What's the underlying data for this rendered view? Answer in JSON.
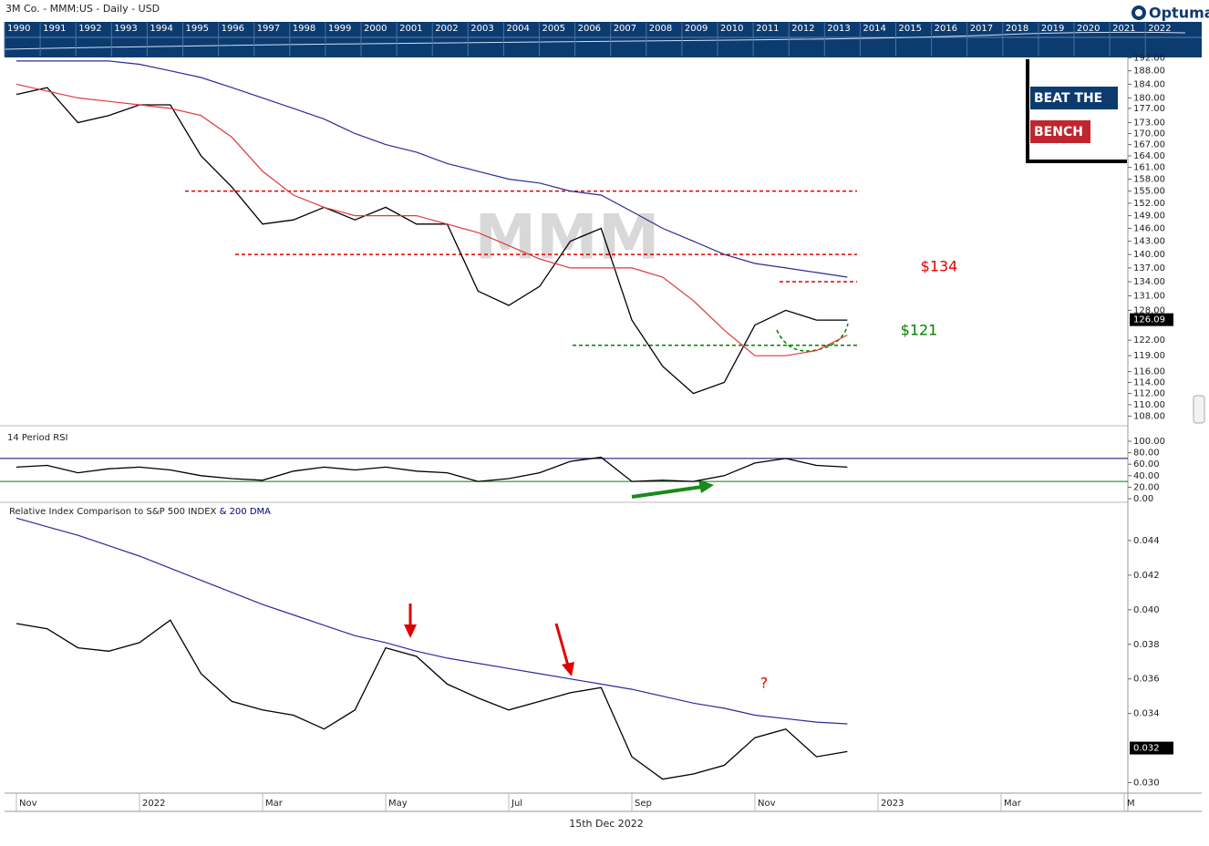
{
  "header": {
    "title": "3M Co. - MMM:US - Daily - USD",
    "logo": "Optuma"
  },
  "overview": {
    "years": [
      "1990",
      "1991",
      "1992",
      "1993",
      "1994",
      "1995",
      "1996",
      "1997",
      "1998",
      "1999",
      "2000",
      "2001",
      "2002",
      "2003",
      "2004",
      "2005",
      "2006",
      "2007",
      "2008",
      "2009",
      "2010",
      "2011",
      "2012",
      "2013",
      "2014",
      "2015",
      "2016",
      "2017",
      "2018",
      "2019",
      "2020",
      "2021",
      "2022"
    ]
  },
  "badge": {
    "line1": "BEAT THE",
    "line2": "BENCH"
  },
  "chart_data": [
    {
      "type": "line",
      "title": "MMM",
      "log": true,
      "ylim": [
        106.5,
        193.5
      ],
      "yticks": [
        {
          "value": 192,
          "label": "192.00"
        },
        {
          "value": 188,
          "label": "188.00"
        },
        {
          "value": 184,
          "label": "184.00"
        },
        {
          "value": 180,
          "label": "180.00"
        },
        {
          "value": 177,
          "label": "177.00"
        },
        {
          "value": 173,
          "label": "173.00"
        },
        {
          "value": 170,
          "label": "170.00"
        },
        {
          "value": 167,
          "label": "167.00"
        },
        {
          "value": 164,
          "label": "164.00"
        },
        {
          "value": 161,
          "label": "161.00"
        },
        {
          "value": 158,
          "label": "158.00"
        },
        {
          "value": 155,
          "label": "155.00"
        },
        {
          "value": 152,
          "label": "152.00"
        },
        {
          "value": 149,
          "label": "149.00"
        },
        {
          "value": 146,
          "label": "146.00"
        },
        {
          "value": 143,
          "label": "143.00"
        },
        {
          "value": 140,
          "label": "140.00"
        },
        {
          "value": 137,
          "label": "137.00"
        },
        {
          "value": 134,
          "label": "134.00"
        },
        {
          "value": 131,
          "label": "131.00"
        },
        {
          "value": 128,
          "label": "128.00"
        },
        {
          "value": 122,
          "label": "122.00"
        },
        {
          "value": 119,
          "label": "119.00"
        },
        {
          "value": 116,
          "label": "116.00"
        },
        {
          "value": 114,
          "label": "114.00"
        },
        {
          "value": 112,
          "label": "112.00"
        },
        {
          "value": 110,
          "label": "110.00"
        },
        {
          "value": 108,
          "label": "108.00"
        }
      ],
      "series": [
        {
          "color": "#000000",
          "values": [
            181,
            183,
            173,
            175,
            178,
            178,
            164,
            156,
            147,
            148,
            151,
            148,
            151,
            147,
            147,
            132,
            129,
            133,
            143,
            146,
            126,
            117,
            112,
            114,
            125,
            128,
            126,
            126,
            null,
            null,
            null,
            null,
            null,
            null,
            null,
            null,
            null
          ]
        },
        {
          "color": "#e03a3a",
          "values": [
            184,
            182,
            180,
            179,
            178,
            177,
            175,
            169,
            160,
            154,
            151,
            149,
            149,
            149,
            147,
            145,
            142,
            139,
            137,
            137,
            137,
            135,
            130,
            124,
            119,
            119,
            120,
            123,
            null,
            null,
            null,
            null,
            null,
            null,
            null,
            null,
            null
          ]
        },
        {
          "color": "#2b2b9a",
          "values": [
            191,
            191,
            191,
            191,
            190,
            188,
            186,
            183,
            180,
            177,
            174,
            170,
            167,
            165,
            162,
            160,
            158,
            157,
            155,
            154,
            150,
            146,
            143,
            140,
            138,
            137,
            136,
            135,
            null,
            null,
            null,
            null,
            null,
            null,
            null,
            null,
            null
          ]
        }
      ],
      "last_value": 126.09,
      "reference_lines": [
        {
          "value": 155,
          "color": "#e00000"
        },
        {
          "value": 140,
          "color": "#e00000"
        },
        {
          "value": 134,
          "color": "#e00000",
          "label": "$134"
        },
        {
          "value": 121,
          "color": "#008000",
          "label": "$121"
        }
      ]
    },
    {
      "type": "line",
      "title": "14 Period RSI",
      "ylim": [
        0,
        100
      ],
      "yticks": [
        {
          "value": 100,
          "label": "100.00"
        },
        {
          "value": 80,
          "label": "80.00"
        },
        {
          "value": 60,
          "label": "60.00"
        },
        {
          "value": 40,
          "label": "40.00"
        },
        {
          "value": 20,
          "label": "20.00"
        },
        {
          "value": 0,
          "label": "0.00"
        }
      ],
      "levels": [
        {
          "value": 70,
          "color": "#000066"
        },
        {
          "value": 30,
          "color": "#008000"
        }
      ],
      "series": [
        {
          "color": "#000000",
          "values": [
            55,
            58,
            45,
            52,
            55,
            50,
            40,
            35,
            32,
            48,
            55,
            50,
            55,
            48,
            45,
            30,
            35,
            45,
            65,
            72,
            30,
            32,
            30,
            40,
            62,
            70,
            58,
            55,
            null,
            null,
            null,
            null,
            null,
            null,
            null,
            null,
            null
          ]
        }
      ]
    },
    {
      "type": "line",
      "title": "Relative Index Comparison to S&P 500 INDEX",
      "title_suffix": "& 200 DMA",
      "annotation": "?",
      "categories": [
        "Nov",
        null,
        null,
        null,
        "2022",
        null,
        null,
        null,
        "Mar",
        null,
        null,
        null,
        "May",
        null,
        null,
        null,
        "Jul",
        null,
        null,
        null,
        "Sep",
        null,
        null,
        null,
        "Nov",
        null,
        null,
        null,
        "2023",
        null,
        null,
        null,
        "Mar",
        null,
        null,
        null,
        "M"
      ],
      "ylim": [
        0.0295,
        0.046
      ],
      "yticks": [
        0.044,
        0.042,
        {
          "value": 0.04,
          "label": "0.040"
        },
        0.038,
        0.036,
        0.034,
        {
          "value": 0.03,
          "label": "0.030"
        }
      ],
      "series": [
        {
          "color": "#000000",
          "values": [
            0.0392,
            0.0389,
            0.0378,
            0.0376,
            0.0381,
            0.0394,
            0.0363,
            0.0347,
            0.0342,
            0.0339,
            0.0331,
            0.0342,
            0.0378,
            0.0373,
            0.0357,
            0.0349,
            0.0342,
            0.0347,
            0.0352,
            0.0355,
            0.0315,
            0.0302,
            0.0305,
            0.031,
            0.0326,
            0.0331,
            0.0315,
            0.0318,
            null,
            null,
            null,
            null,
            null,
            null,
            null,
            null,
            null
          ]
        },
        {
          "color": "#2b2b9a",
          "values": [
            0.0453,
            0.0448,
            0.0443,
            0.0437,
            0.0431,
            0.0424,
            0.0417,
            0.041,
            0.0403,
            0.0397,
            0.0391,
            0.0385,
            0.0381,
            0.0376,
            0.0372,
            0.0369,
            0.0366,
            0.0363,
            0.036,
            0.0357,
            0.0354,
            0.035,
            0.0346,
            0.0343,
            0.0339,
            0.0337,
            0.0335,
            0.0334,
            null,
            null,
            null,
            null,
            null,
            null,
            null,
            null,
            null
          ]
        }
      ],
      "last_value": 0.032
    }
  ],
  "footer": {
    "date": "15th Dec 2022"
  }
}
